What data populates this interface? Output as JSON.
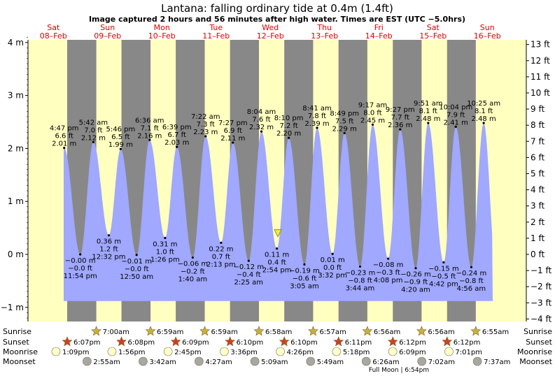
{
  "title": "Lantana: falling  ordinary tide at 0.4m (1.4ft)",
  "subtitle": "Image captured 2 hours and 56 minutes after high water. Times are EST (UTC −5.0hrs)",
  "colors": {
    "day": "#ffffc0",
    "night": "#888888",
    "water": "#a0a8ff",
    "date": "#dd0000",
    "sun_star": "#c8b040",
    "sunset_star": "#d04020",
    "moonrise": "#ffffc8",
    "moonset": "#a8a8a0"
  },
  "days": [
    {
      "name": "Sat",
      "date": "08–Feb"
    },
    {
      "name": "Sun",
      "date": "09–Feb"
    },
    {
      "name": "Mon",
      "date": "10–Feb"
    },
    {
      "name": "Tue",
      "date": "11–Feb"
    },
    {
      "name": "Wed",
      "date": "12–Feb"
    },
    {
      "name": "Thu",
      "date": "13–Feb"
    },
    {
      "name": "Fri",
      "date": "14–Feb"
    },
    {
      "name": "Sat",
      "date": "15–Feb"
    },
    {
      "name": "Sun",
      "date": "16–Feb"
    }
  ],
  "chart_data": {
    "type": "area",
    "title": "Lantana: falling  ordinary tide at 0.4m (1.4ft)",
    "y_left_unit": "m",
    "y_right_unit": "ft",
    "y_left_ticks": [
      "4 m",
      "3 m",
      "2 m",
      "1 m",
      "0 m",
      "−1 m"
    ],
    "y_left_values": [
      4,
      3,
      2,
      1,
      0,
      -1
    ],
    "y_right_ticks": [
      "13 ft",
      "12 ft",
      "11 ft",
      "10 ft",
      "9 ft",
      "8 ft",
      "7 ft",
      "6 ft",
      "5 ft",
      "4 ft",
      "3 ft",
      "2 ft",
      "1 ft",
      "0 ft",
      "−1 ft",
      "−2 ft",
      "−3 ft",
      "−4 ft"
    ],
    "ylim_m": [
      -1.25,
      4.25
    ],
    "current": {
      "level_m": 0.4,
      "label": "falling ordinary tide at 0.4m (1.4ft)"
    },
    "nights": [
      {
        "start": "08-Feb 18:07",
        "end": "09-Feb 07:00"
      },
      {
        "start": "09-Feb 18:08",
        "end": "10-Feb 06:59"
      },
      {
        "start": "10-Feb 18:09",
        "end": "11-Feb 06:59"
      },
      {
        "start": "11-Feb 18:10",
        "end": "12-Feb 06:58"
      },
      {
        "start": "12-Feb 18:10",
        "end": "13-Feb 06:57"
      },
      {
        "start": "13-Feb 18:11",
        "end": "14-Feb 06:56"
      },
      {
        "start": "14-Feb 18:12",
        "end": "15-Feb 06:56"
      },
      {
        "start": "15-Feb 18:12",
        "end": "16-Feb 06:55"
      }
    ],
    "high_tides": [
      {
        "time": "4:47 pm",
        "day": 0,
        "ft": "6.6 ft",
        "m": 2.01,
        "m_label": "2.01 m"
      },
      {
        "time": "5:42 am",
        "day": 1,
        "ft": "7.0 ft",
        "m": 2.12,
        "m_label": "2.12 m"
      },
      {
        "time": "5:46 pm",
        "day": 1,
        "ft": "6.5 ft",
        "m": 1.99,
        "m_label": "1.99 m"
      },
      {
        "time": "6:36 am",
        "day": 2,
        "ft": "7.1 ft",
        "m": 2.16,
        "m_label": "2.16 m"
      },
      {
        "time": "6:39 pm",
        "day": 2,
        "ft": "6.7 ft",
        "m": 2.03,
        "m_label": "2.03 m"
      },
      {
        "time": "7:22 am",
        "day": 3,
        "ft": "7.3 ft",
        "m": 2.23,
        "m_label": "2.23 m"
      },
      {
        "time": "7:27 pm",
        "day": 3,
        "ft": "6.9 ft",
        "m": 2.11,
        "m_label": "2.11 m"
      },
      {
        "time": "8:04 am",
        "day": 4,
        "ft": "7.6 ft",
        "m": 2.32,
        "m_label": "2.32 m"
      },
      {
        "time": "8:10 pm",
        "day": 4,
        "ft": "7.2 ft",
        "m": 2.2,
        "m_label": "2.20 m"
      },
      {
        "time": "8:41 am",
        "day": 5,
        "ft": "7.8 ft",
        "m": 2.39,
        "m_label": "2.39 m"
      },
      {
        "time": "8:49 pm",
        "day": 5,
        "ft": "7.5 ft",
        "m": 2.29,
        "m_label": "2.29 m"
      },
      {
        "time": "9:17 am",
        "day": 6,
        "ft": "8.0 ft",
        "m": 2.45,
        "m_label": "2.45 m"
      },
      {
        "time": "9:27 pm",
        "day": 6,
        "ft": "7.7 ft",
        "m": 2.36,
        "m_label": "2.36 m"
      },
      {
        "time": "9:51 am",
        "day": 7,
        "ft": "8.1 ft",
        "m": 2.48,
        "m_label": "2.48 m"
      },
      {
        "time": "10:04 pm",
        "day": 7,
        "ft": "7.9 ft",
        "m": 2.41,
        "m_label": "2.41 m"
      },
      {
        "time": "10:25 am",
        "day": 8,
        "ft": "8.1 ft",
        "m": 2.48,
        "m_label": "2.48 m"
      }
    ],
    "low_tides": [
      {
        "time": "11:54 pm",
        "day": 0,
        "ft": "−0.0 ft",
        "m": -0.0,
        "m_label": "−0.00 m"
      },
      {
        "time": "12:32 pm",
        "day": 1,
        "ft": "1.2 ft",
        "m": 0.36,
        "m_label": "0.36 m"
      },
      {
        "time": "12:50 am",
        "day": 2,
        "ft": "−0.0 ft",
        "m": -0.01,
        "m_label": "−0.01 m"
      },
      {
        "time": "1:26 pm",
        "day": 2,
        "ft": "1.0 ft",
        "m": 0.31,
        "m_label": "0.31 m"
      },
      {
        "time": "1:40 am",
        "day": 3,
        "ft": "−0.2 ft",
        "m": -0.06,
        "m_label": "−0.06 m"
      },
      {
        "time": "2:13 pm",
        "day": 3,
        "ft": "0.7 ft",
        "m": 0.22,
        "m_label": "0.22 m"
      },
      {
        "time": "2:25 am",
        "day": 4,
        "ft": "−0.4 ft",
        "m": -0.12,
        "m_label": "−0.12 m"
      },
      {
        "time": "2:54 pm",
        "day": 4,
        "ft": "0.4 ft",
        "m": 0.11,
        "m_label": "0.11 m"
      },
      {
        "time": "3:05 am",
        "day": 5,
        "ft": "−0.6 ft",
        "m": -0.19,
        "m_label": "−0.19 m"
      },
      {
        "time": "3:32 pm",
        "day": 5,
        "ft": "0.0 ft",
        "m": 0.01,
        "m_label": "0.01 m"
      },
      {
        "time": "3:44 am",
        "day": 6,
        "ft": "−0.8 ft",
        "m": -0.23,
        "m_label": "−0.23 m"
      },
      {
        "time": "4:08 pm",
        "day": 6,
        "ft": "−0.3 ft",
        "m": -0.08,
        "m_label": "−0.08 m"
      },
      {
        "time": "4:20 am",
        "day": 7,
        "ft": "−0.9 ft",
        "m": -0.26,
        "m_label": "−0.26 m"
      },
      {
        "time": "4:42 pm",
        "day": 7,
        "ft": "−0.5 ft",
        "m": -0.15,
        "m_label": "−0.15 m"
      },
      {
        "time": "4:56 am",
        "day": 8,
        "ft": "−0.8 ft",
        "m": -0.24,
        "m_label": "−0.24 m"
      }
    ]
  },
  "bottom": {
    "row_labels": {
      "sunrise": "Sunrise",
      "sunset": "Sunset",
      "moonrise": "Moonrise",
      "moonset": "Moonset"
    },
    "sunrise": [
      {
        "day": 1,
        "time": "7:00am"
      },
      {
        "day": 2,
        "time": "6:59am"
      },
      {
        "day": 3,
        "time": "6:59am"
      },
      {
        "day": 4,
        "time": "6:58am"
      },
      {
        "day": 5,
        "time": "6:57am"
      },
      {
        "day": 6,
        "time": "6:56am"
      },
      {
        "day": 7,
        "time": "6:56am"
      },
      {
        "day": 8,
        "time": "6:55am"
      }
    ],
    "sunset": [
      {
        "day": 0,
        "time": "6:07pm"
      },
      {
        "day": 1,
        "time": "6:08pm"
      },
      {
        "day": 2,
        "time": "6:09pm"
      },
      {
        "day": 3,
        "time": "6:10pm"
      },
      {
        "day": 4,
        "time": "6:10pm"
      },
      {
        "day": 5,
        "time": "6:11pm"
      },
      {
        "day": 6,
        "time": "6:12pm"
      },
      {
        "day": 7,
        "time": "6:12pm"
      }
    ],
    "moonrise": [
      {
        "day": 0,
        "time": "1:09pm"
      },
      {
        "day": 1,
        "time": "1:56pm"
      },
      {
        "day": 2,
        "time": "2:45pm"
      },
      {
        "day": 3,
        "time": "3:36pm"
      },
      {
        "day": 4,
        "time": "4:26pm"
      },
      {
        "day": 5,
        "time": "5:18pm"
      },
      {
        "day": 6,
        "time": "6:09pm"
      },
      {
        "day": 7,
        "time": "7:01pm"
      }
    ],
    "moonset": [
      {
        "day": 1,
        "time": "2:55am"
      },
      {
        "day": 2,
        "time": "3:42am"
      },
      {
        "day": 3,
        "time": "4:27am"
      },
      {
        "day": 4,
        "time": "5:09am"
      },
      {
        "day": 5,
        "time": "5:49am"
      },
      {
        "day": 6,
        "time": "6:26am"
      },
      {
        "day": 7,
        "time": "7:02am"
      },
      {
        "day": 8,
        "time": "7:37am"
      }
    ],
    "full_moon": "Full Moon | 6:54pm"
  }
}
